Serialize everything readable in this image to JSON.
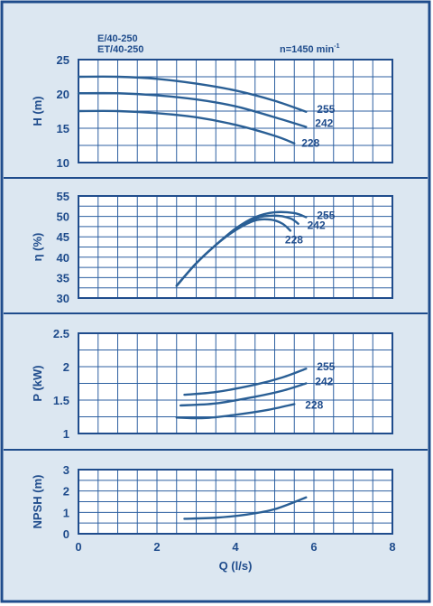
{
  "header": {
    "model_line1": "E/40-250",
    "model_line2": "ET/40-250",
    "speed_text": "n=1450 min",
    "speed_exp": "-1"
  },
  "colors": {
    "background": "#dce7f1",
    "border": "#1f4c8c",
    "grid": "#2c5fa0",
    "curve": "#2a5f95",
    "text": "#1f4c8c"
  },
  "chart_data": [
    {
      "type": "line",
      "panel": "head",
      "ylabel": "H (m)",
      "ylim": [
        10,
        25
      ],
      "yticks": [
        10,
        15,
        20,
        25
      ],
      "xlim": [
        0,
        8
      ],
      "x_gridlines": 16,
      "y_gridlines": 6,
      "grid": true,
      "series": [
        {
          "name": "255",
          "points": [
            [
              0,
              22.5
            ],
            [
              1,
              22.5
            ],
            [
              2,
              22.2
            ],
            [
              3,
              21.5
            ],
            [
              4,
              20.5
            ],
            [
              5,
              19
            ],
            [
              5.8,
              17.4
            ]
          ]
        },
        {
          "name": "242",
          "points": [
            [
              0,
              20.1
            ],
            [
              1,
              20.1
            ],
            [
              2,
              19.8
            ],
            [
              3,
              19.2
            ],
            [
              4,
              18.2
            ],
            [
              5,
              16.6
            ],
            [
              5.8,
              15.2
            ]
          ]
        },
        {
          "name": "228",
          "points": [
            [
              0,
              17.5
            ],
            [
              1,
              17.5
            ],
            [
              2,
              17.2
            ],
            [
              3,
              16.6
            ],
            [
              4,
              15.5
            ],
            [
              5,
              13.9
            ],
            [
              5.5,
              12.8
            ]
          ]
        }
      ]
    },
    {
      "type": "line",
      "panel": "efficiency",
      "ylabel": "η (%)",
      "ylim": [
        30,
        55
      ],
      "yticks": [
        30,
        35,
        40,
        45,
        50,
        55
      ],
      "xlim": [
        0,
        8
      ],
      "x_gridlines": 16,
      "y_gridlines": 10,
      "grid": true,
      "series": [
        {
          "name": "255",
          "points": [
            [
              2.5,
              33
            ],
            [
              3,
              38.5
            ],
            [
              3.5,
              43
            ],
            [
              4,
              47
            ],
            [
              4.5,
              49.8
            ],
            [
              5,
              51
            ],
            [
              5.5,
              50.8
            ],
            [
              5.8,
              49.8
            ]
          ]
        },
        {
          "name": "242",
          "points": [
            [
              2.5,
              33
            ],
            [
              3,
              38.5
            ],
            [
              3.5,
              43
            ],
            [
              4,
              46.8
            ],
            [
              4.5,
              49.5
            ],
            [
              5,
              50.2
            ],
            [
              5.4,
              49.5
            ],
            [
              5.6,
              48.2
            ]
          ]
        },
        {
          "name": "228",
          "points": [
            [
              2.5,
              33
            ],
            [
              3,
              38.5
            ],
            [
              3.5,
              43
            ],
            [
              4,
              46.6
            ],
            [
              4.5,
              49
            ],
            [
              4.9,
              49.2
            ],
            [
              5.2,
              48.2
            ],
            [
              5.4,
              46.5
            ]
          ]
        }
      ]
    },
    {
      "type": "line",
      "panel": "power",
      "ylabel": "P (kW)",
      "ylim": [
        1,
        2.5
      ],
      "yticks": [
        1,
        1.5,
        2,
        2.5
      ],
      "ytick_labels": [
        "1",
        "1.5",
        "2",
        "2.5"
      ],
      "xlim": [
        0,
        8
      ],
      "x_gridlines": 16,
      "y_gridlines": 6,
      "grid": true,
      "series": [
        {
          "name": "255",
          "points": [
            [
              2.7,
              1.58
            ],
            [
              3.5,
              1.62
            ],
            [
              4.5,
              1.73
            ],
            [
              5.2,
              1.84
            ],
            [
              5.8,
              1.97
            ]
          ]
        },
        {
          "name": "242",
          "points": [
            [
              2.6,
              1.42
            ],
            [
              3.5,
              1.45
            ],
            [
              4.5,
              1.55
            ],
            [
              5.2,
              1.64
            ],
            [
              5.8,
              1.75
            ]
          ]
        },
        {
          "name": "228",
          "points": [
            [
              2.5,
              1.24
            ],
            [
              3.2,
              1.23
            ],
            [
              4,
              1.28
            ],
            [
              4.8,
              1.35
            ],
            [
              5.5,
              1.44
            ]
          ]
        }
      ]
    },
    {
      "type": "line",
      "panel": "npsh",
      "ylabel": "NPSH (m)",
      "xlabel": "Q (l/s)",
      "ylim": [
        0,
        3
      ],
      "yticks": [
        0,
        1,
        2,
        3
      ],
      "xlim": [
        0,
        8
      ],
      "xticks": [
        0,
        2,
        4,
        6,
        8
      ],
      "x_gridlines": 16,
      "y_gridlines": 6,
      "grid": true,
      "series": [
        {
          "name": "",
          "points": [
            [
              2.7,
              0.7
            ],
            [
              3.5,
              0.75
            ],
            [
              4.3,
              0.9
            ],
            [
              5,
              1.15
            ],
            [
              5.8,
              1.7
            ]
          ]
        }
      ]
    }
  ]
}
